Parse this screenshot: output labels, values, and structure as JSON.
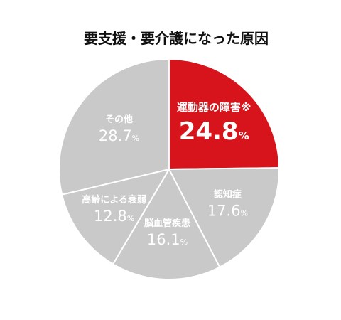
{
  "title": "要支援・要介護になった原因",
  "chart_data": {
    "type": "pie",
    "title": "要支援・要介護になった原因",
    "unit": "%",
    "slices": [
      {
        "label": "運動器の障害※",
        "value": 24.8,
        "color": "#d7131b"
      },
      {
        "label": "認知症",
        "value": 17.6,
        "color": "#c9c9ca"
      },
      {
        "label": "脳血管疾患",
        "value": 16.1,
        "color": "#c9c9ca"
      },
      {
        "label": "高齢による衰弱",
        "value": 12.8,
        "color": "#c9c9ca"
      },
      {
        "label": "その他",
        "value": 28.7,
        "color": "#c9c9ca"
      }
    ],
    "start": "12 o'clock",
    "direction": "clockwise",
    "legend": "none"
  }
}
